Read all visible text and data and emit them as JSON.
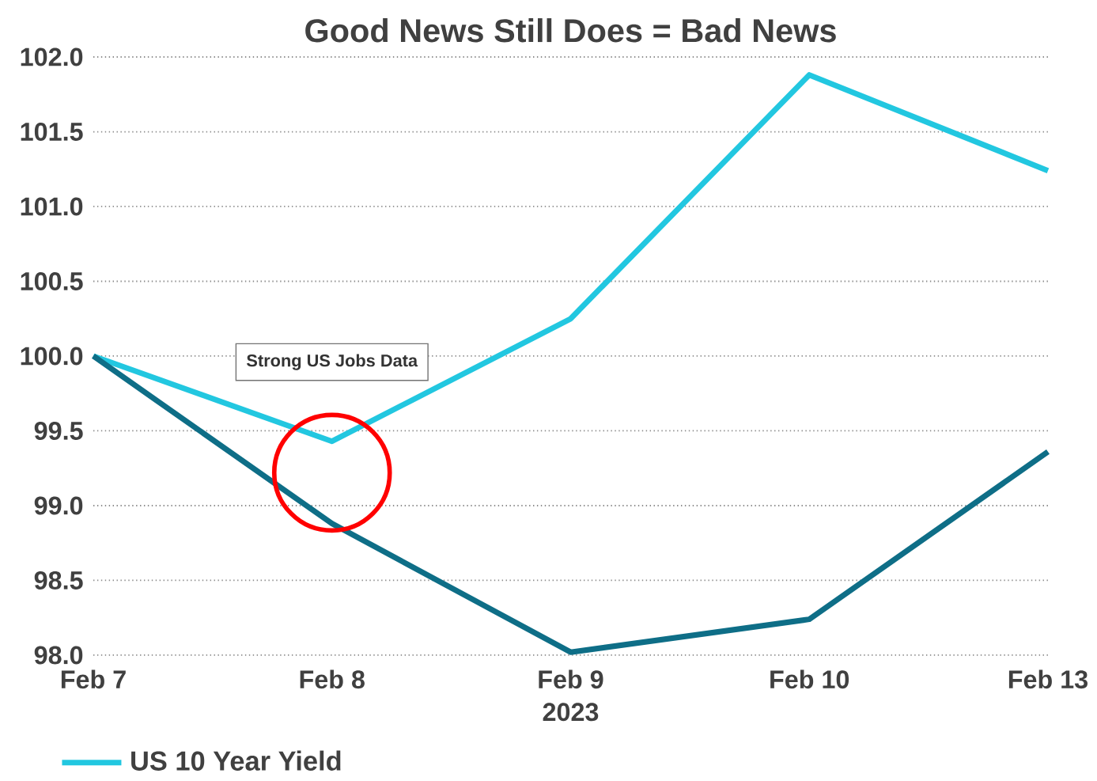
{
  "chart_data": {
    "type": "line",
    "title": "Good News Still Does = Bad News",
    "xlabel": "2023",
    "categories": [
      "Feb 7",
      "Feb 8",
      "Feb 9",
      "Feb 10",
      "Feb 13"
    ],
    "series": [
      {
        "name": "US 10 Year Yield",
        "color": "#22c7e0",
        "values": [
          100.0,
          99.43,
          100.25,
          101.88,
          101.24
        ]
      },
      {
        "color": "#0e6e87",
        "values": [
          100.0,
          98.88,
          98.02,
          98.24,
          99.36
        ]
      }
    ],
    "ylim": [
      98.0,
      102.0
    ],
    "yticks": [
      {
        "value": 98.0,
        "label": "98.0"
      },
      {
        "value": 98.5,
        "label": "98.5"
      },
      {
        "value": 99.0,
        "label": "99.0"
      },
      {
        "value": 99.5,
        "label": "99.5"
      },
      {
        "value": 100.0,
        "label": "100.0"
      },
      {
        "value": 100.5,
        "label": "100.5"
      },
      {
        "value": 101.0,
        "label": "101.0"
      },
      {
        "value": 101.5,
        "label": "101.5"
      },
      {
        "value": 102.0,
        "label": "102.0"
      }
    ],
    "annotations": [
      "Strong US Jobs Data"
    ],
    "grid": "y",
    "legend": "bottom left",
    "marker": "none",
    "line_style": "solid"
  }
}
